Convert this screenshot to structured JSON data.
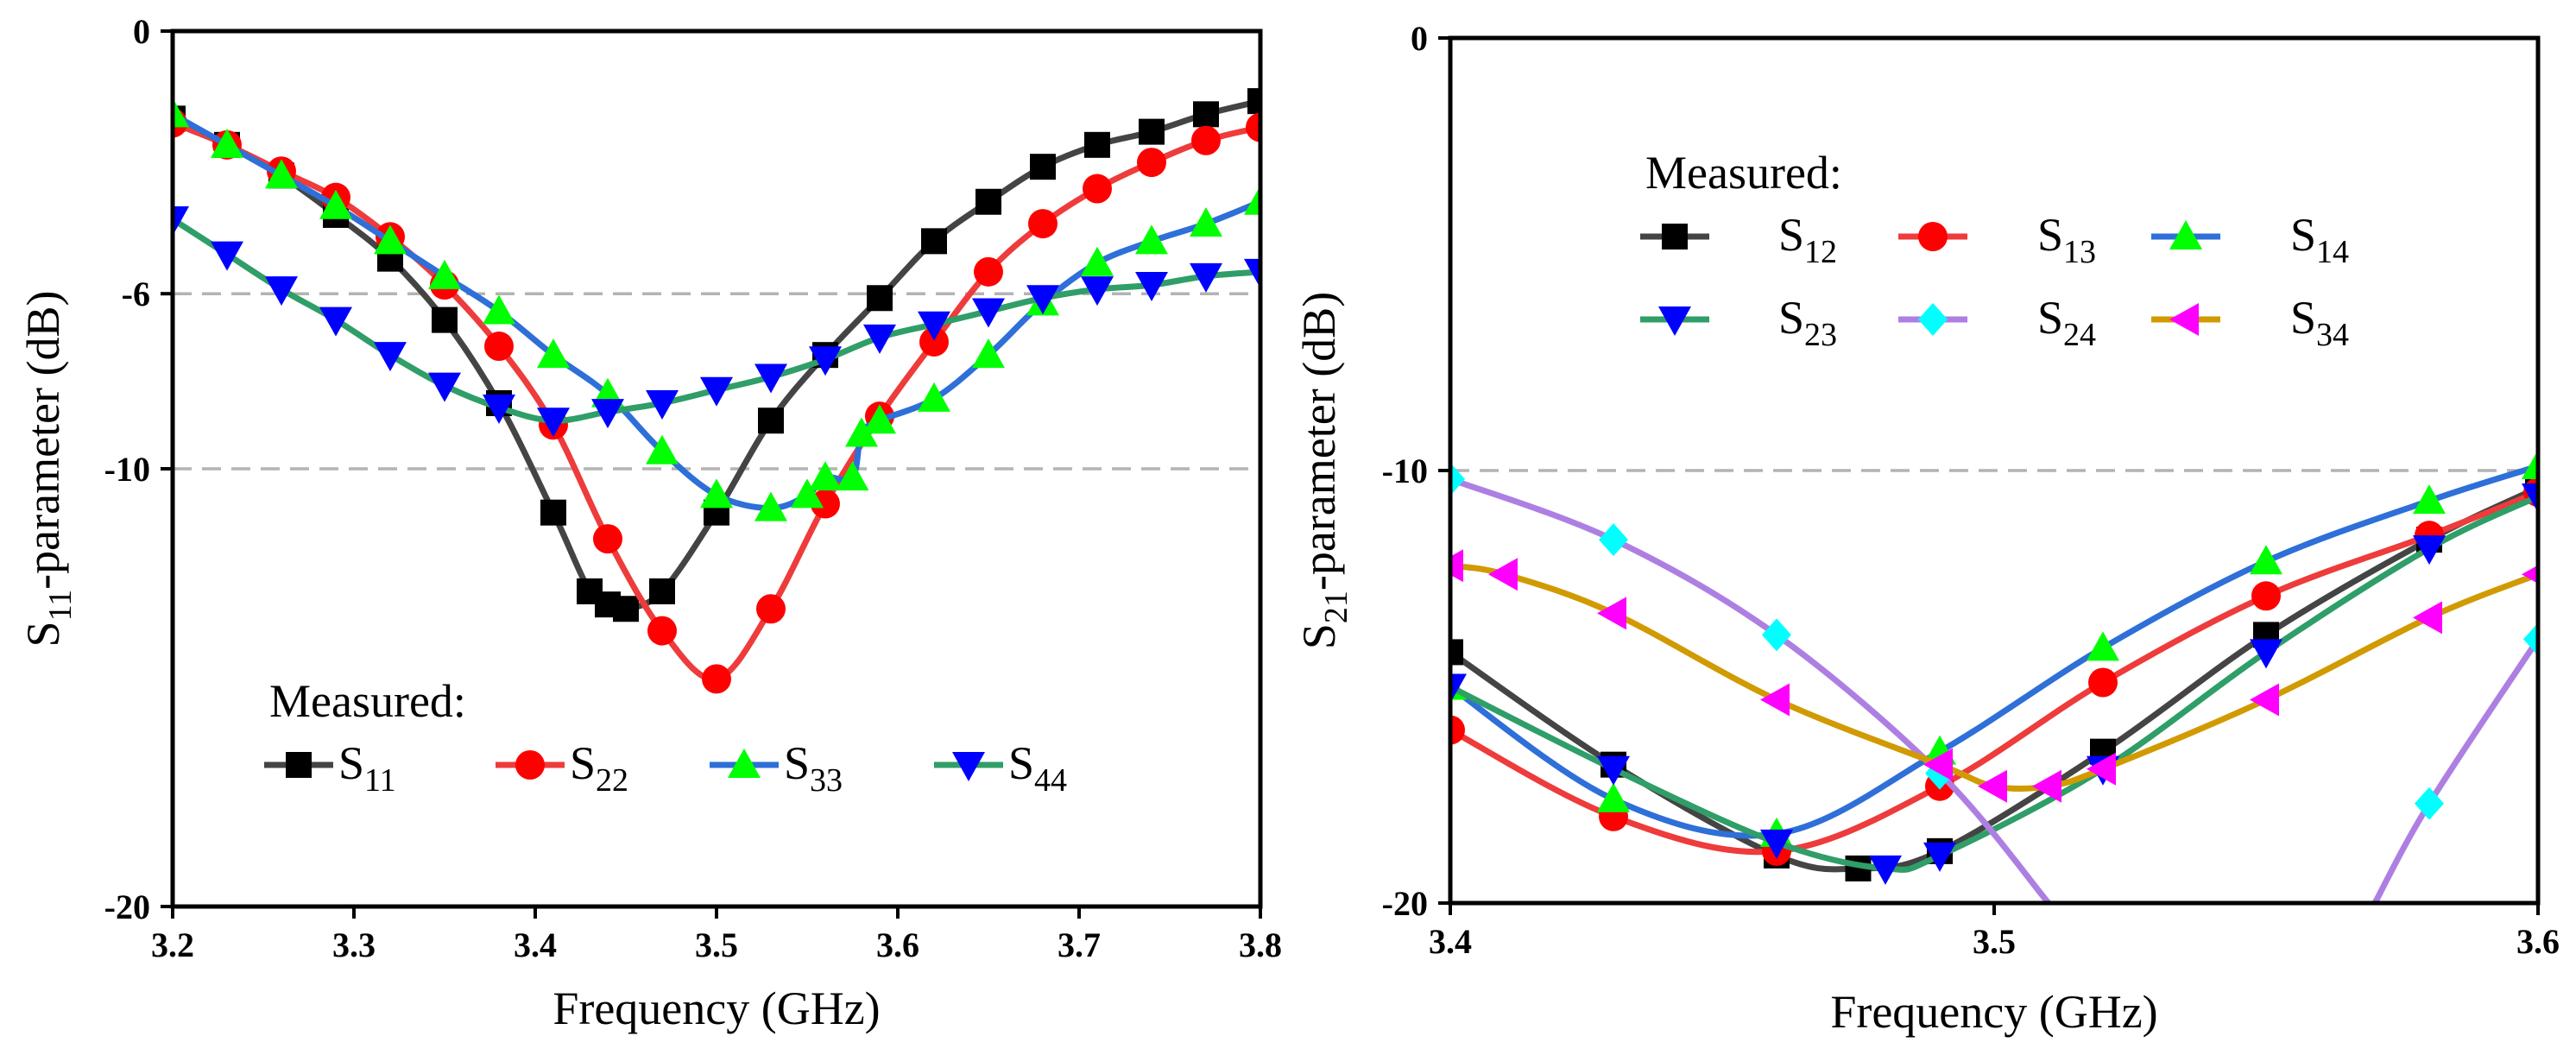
{
  "chart_data": [
    {
      "type": "line",
      "xlabel": "Frequency (GHz)",
      "ylabel": {
        "main": "S",
        "sub": "11",
        "rest": "-parameter (dB)"
      },
      "xlim": [
        3.2,
        3.8
      ],
      "ylim": [
        -20,
        0
      ],
      "xticks": [
        "3.2",
        "3.3",
        "3.4",
        "3.5",
        "3.6",
        "3.7",
        "3.8"
      ],
      "yticks": [
        "0",
        "-6",
        "-10",
        "-20"
      ],
      "reference_lines_db": [
        -6,
        -10
      ],
      "legend": {
        "title": "Measured:",
        "placement": "lower-left"
      },
      "series": [
        {
          "name": "S",
          "sub": "11",
          "color": "#444444",
          "marker": "square",
          "marker_color": "#000000",
          "x": [
            3.2,
            3.23,
            3.26,
            3.29,
            3.32,
            3.35,
            3.38,
            3.41,
            3.43,
            3.44,
            3.45,
            3.47,
            3.5,
            3.53,
            3.56,
            3.59,
            3.62,
            3.65,
            3.68,
            3.71,
            3.74,
            3.77,
            3.8
          ],
          "y": [
            -2.0,
            -2.6,
            -3.3,
            -4.2,
            -5.2,
            -6.6,
            -8.5,
            -11.0,
            -12.8,
            -13.1,
            -13.2,
            -12.8,
            -11.0,
            -8.9,
            -7.4,
            -6.1,
            -4.8,
            -3.9,
            -3.1,
            -2.6,
            -2.3,
            -1.9,
            -1.6
          ]
        },
        {
          "name": "S",
          "sub": "22",
          "color": "#ee3b3b",
          "marker": "circle",
          "marker_color": "#ff0000",
          "x": [
            3.2,
            3.23,
            3.26,
            3.29,
            3.32,
            3.35,
            3.38,
            3.41,
            3.44,
            3.47,
            3.5,
            3.53,
            3.56,
            3.59,
            3.62,
            3.65,
            3.68,
            3.71,
            3.74,
            3.77,
            3.8
          ],
          "y": [
            -2.1,
            -2.6,
            -3.2,
            -3.8,
            -4.7,
            -5.8,
            -7.2,
            -9.0,
            -11.6,
            -13.7,
            -14.8,
            -13.2,
            -10.8,
            -8.8,
            -7.1,
            -5.5,
            -4.4,
            -3.6,
            -3.0,
            -2.5,
            -2.2
          ]
        },
        {
          "name": "S",
          "sub": "33",
          "color": "#2e6fd8",
          "marker": "triangle-up",
          "marker_color": "#00ff00",
          "x": [
            3.2,
            3.23,
            3.26,
            3.29,
            3.32,
            3.35,
            3.38,
            3.41,
            3.44,
            3.47,
            3.5,
            3.53,
            3.55,
            3.56,
            3.575,
            3.58,
            3.59,
            3.62,
            3.65,
            3.68,
            3.71,
            3.74,
            3.77,
            3.8
          ],
          "y": [
            -1.9,
            -2.6,
            -3.3,
            -4.0,
            -4.8,
            -5.6,
            -6.4,
            -7.4,
            -8.3,
            -9.6,
            -10.6,
            -10.9,
            -10.6,
            -10.2,
            -10.2,
            -9.2,
            -8.9,
            -8.4,
            -7.4,
            -6.2,
            -5.3,
            -4.8,
            -4.4,
            -3.9
          ]
        },
        {
          "name": "S",
          "sub": "44",
          "color": "#2f9e68",
          "marker": "triangle-down",
          "marker_color": "#0000ff",
          "x": [
            3.2,
            3.23,
            3.26,
            3.29,
            3.32,
            3.35,
            3.38,
            3.41,
            3.44,
            3.47,
            3.5,
            3.53,
            3.56,
            3.59,
            3.62,
            3.65,
            3.68,
            3.71,
            3.74,
            3.77,
            3.8
          ],
          "y": [
            -4.3,
            -5.1,
            -5.9,
            -6.6,
            -7.4,
            -8.1,
            -8.6,
            -8.9,
            -8.7,
            -8.5,
            -8.2,
            -7.9,
            -7.5,
            -7.0,
            -6.7,
            -6.4,
            -6.1,
            -5.9,
            -5.8,
            -5.6,
            -5.5
          ]
        }
      ]
    },
    {
      "type": "line",
      "xlabel": "Frequency (GHz)",
      "ylabel": {
        "main": "S",
        "sub": "21",
        "rest": "-parameter (dB)"
      },
      "xlim": [
        3.4,
        3.6
      ],
      "ylim": [
        -20,
        0
      ],
      "xticks": [
        "3.4",
        "3.5",
        "3.6"
      ],
      "yticks": [
        "0",
        "-10",
        "-20"
      ],
      "reference_lines_db": [
        -10
      ],
      "legend": {
        "title": "Measured:",
        "placement": "top-left",
        "columns": 3
      },
      "series": [
        {
          "name": "S",
          "sub": "12",
          "color": "#444444",
          "marker": "square",
          "marker_color": "#000000",
          "x": [
            3.4,
            3.43,
            3.46,
            3.475,
            3.49,
            3.52,
            3.55,
            3.58,
            3.6
          ],
          "y": [
            -14.2,
            -16.8,
            -18.9,
            -19.2,
            -18.8,
            -16.5,
            -13.8,
            -11.6,
            -10.4
          ]
        },
        {
          "name": "S",
          "sub": "13",
          "color": "#ee3b3b",
          "marker": "circle",
          "marker_color": "#ff0000",
          "x": [
            3.4,
            3.43,
            3.46,
            3.49,
            3.52,
            3.55,
            3.58,
            3.6
          ],
          "y": [
            -16.0,
            -18.0,
            -18.8,
            -17.3,
            -14.9,
            -12.9,
            -11.5,
            -10.5
          ]
        },
        {
          "name": "S",
          "sub": "14",
          "color": "#2e6fd8",
          "marker": "triangle-up",
          "marker_color": "#00ff00",
          "x": [
            3.4,
            3.43,
            3.46,
            3.49,
            3.52,
            3.55,
            3.58,
            3.6
          ],
          "y": [
            -15.0,
            -17.6,
            -18.4,
            -16.5,
            -14.1,
            -12.1,
            -10.7,
            -9.9
          ]
        },
        {
          "name": "S",
          "sub": "23",
          "color": "#2f9e68",
          "marker": "triangle-down",
          "marker_color": "#0000ff",
          "x": [
            3.4,
            3.43,
            3.46,
            3.48,
            3.49,
            3.52,
            3.55,
            3.58,
            3.6
          ],
          "y": [
            -15.0,
            -16.9,
            -18.6,
            -19.2,
            -18.9,
            -16.9,
            -14.2,
            -11.8,
            -10.6
          ]
        },
        {
          "name": "S",
          "sub": "24",
          "color": "#ae7fe3",
          "marker": "diamond",
          "marker_color": "#00ffff",
          "x": [
            3.4,
            3.43,
            3.46,
            3.49,
            3.51,
            3.57,
            3.58,
            3.6
          ],
          "y": [
            -10.2,
            -11.6,
            -13.8,
            -17.0,
            -20.0,
            -20.0,
            -17.7,
            -13.9
          ],
          "breaks_after_index": [
            4
          ]
        },
        {
          "name": "S",
          "sub": "34",
          "color": "#d19a00",
          "marker": "triangle-left",
          "marker_color": "#ff00ff",
          "x": [
            3.4,
            3.41,
            3.43,
            3.46,
            3.49,
            3.5,
            3.51,
            3.52,
            3.55,
            3.58,
            3.6
          ],
          "y": [
            -12.2,
            -12.4,
            -13.3,
            -15.3,
            -16.8,
            -17.3,
            -17.3,
            -16.9,
            -15.3,
            -13.4,
            -12.4
          ]
        }
      ]
    }
  ]
}
